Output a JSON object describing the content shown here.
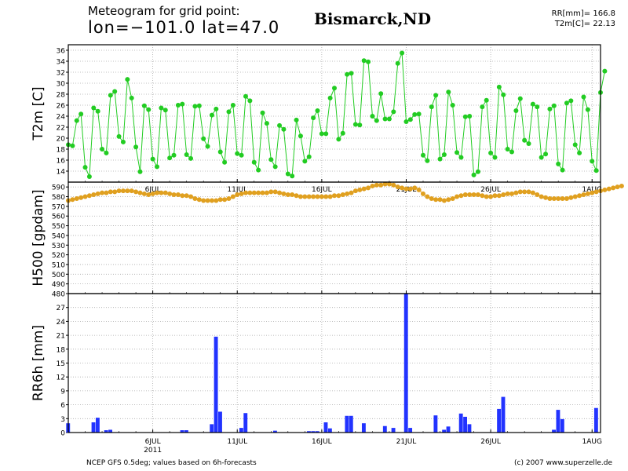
{
  "header": {
    "title_line1": "Meteogram for grid point:",
    "title_line2": "lon=−101.0 lat=47.0",
    "location": "Bismarck,ND",
    "rr_total": "RR[mm]= 166.8",
    "t2m_now": "T2m[C]= 22.13"
  },
  "footer": {
    "source": "NCEP GFS 0.5deg; values based on 6h-forecasts",
    "copyright": "(c) 2007 www.superzelle.de"
  },
  "colors": {
    "t2m": "#22cc22",
    "h500": "#e0a020",
    "rr6h": "#2233ff",
    "grid": "#aaaaaa"
  },
  "chart_data": [
    {
      "type": "line",
      "ylabel": "T2m [C]",
      "ylim": [
        12,
        37
      ],
      "yticks": [
        14,
        16,
        18,
        20,
        22,
        24,
        26,
        28,
        30,
        32,
        34,
        36
      ],
      "x_unit": "days since 1 Jul 2011",
      "xticks": [
        "6JUL",
        "11JUL",
        "16JUL",
        "21JUL",
        "26JUL",
        "1AUG"
      ],
      "x_start": 0,
      "x_step": 0.25,
      "values": [
        18.8,
        18.6,
        23.2,
        24.4,
        14.7,
        13.0,
        25.5,
        24.9,
        18.0,
        17.3,
        27.8,
        28.5,
        20.3,
        19.3,
        30.7,
        27.3,
        18.4,
        13.9,
        25.9,
        25.2,
        16.2,
        14.8,
        25.5,
        25.1,
        16.4,
        16.9,
        26.0,
        26.2,
        17.0,
        16.3,
        25.8,
        25.9,
        19.9,
        18.5,
        24.2,
        25.3,
        17.5,
        15.6,
        24.8,
        26.0,
        17.2,
        16.9,
        27.6,
        26.8,
        15.6,
        14.2,
        24.6,
        22.7,
        16.1,
        14.8,
        22.3,
        21.6,
        13.5,
        13.1,
        23.3,
        20.4,
        15.8,
        16.6,
        23.7,
        25.0,
        20.8,
        20.8,
        27.3,
        29.1,
        19.8,
        20.9,
        31.6,
        31.8,
        22.5,
        22.4,
        34.1,
        33.9,
        24.0,
        23.2,
        28.1,
        23.5,
        23.5,
        24.8,
        33.6,
        35.5,
        23.0,
        23.4,
        24.3,
        24.4,
        16.9,
        15.9,
        25.7,
        27.8,
        16.2,
        17.0,
        28.4,
        26.0,
        17.4,
        16.5,
        23.9,
        24.0,
        13.3,
        13.9,
        25.7,
        26.9,
        17.3,
        16.5,
        29.3,
        27.9,
        18.0,
        17.5,
        25.0,
        27.2,
        19.6,
        19.0,
        26.2,
        25.7,
        16.5,
        17.1,
        25.3,
        25.9,
        15.3,
        14.2,
        26.4,
        26.8,
        18.8,
        17.3,
        27.5,
        25.2,
        15.8,
        14.1,
        28.3,
        32.2
      ]
    },
    {
      "type": "line",
      "ylabel": "H500 [gpdam]",
      "ylim": [
        480,
        595
      ],
      "yticks": [
        480,
        490,
        500,
        510,
        520,
        530,
        540,
        550,
        560,
        570,
        580,
        590
      ],
      "x_unit": "days since 1 Jul 2011",
      "values": [
        576,
        577,
        578,
        579,
        580,
        581,
        582,
        583,
        584,
        584,
        585,
        585,
        586,
        586,
        586,
        586,
        585,
        584,
        583,
        582,
        583,
        584,
        584,
        584,
        583,
        582,
        582,
        581,
        581,
        580,
        578,
        577,
        576,
        576,
        576,
        576,
        577,
        577,
        578,
        580,
        582,
        583,
        584,
        584,
        584,
        584,
        584,
        584,
        585,
        585,
        584,
        583,
        582,
        582,
        581,
        580,
        580,
        580,
        580,
        580,
        580,
        580,
        580,
        581,
        581,
        582,
        583,
        584,
        586,
        587,
        588,
        589,
        591,
        592,
        592,
        593,
        593,
        592,
        590,
        589,
        588,
        588,
        589,
        587,
        583,
        580,
        578,
        577,
        577,
        576,
        577,
        578,
        580,
        581,
        582,
        582,
        582,
        582,
        581,
        580,
        580,
        581,
        581,
        582,
        583,
        583,
        584,
        585,
        585,
        585,
        584,
        582,
        580,
        579,
        578,
        578,
        578,
        578,
        578,
        579,
        580,
        581,
        582,
        583,
        584,
        585,
        586,
        587,
        588,
        589,
        590,
        591
      ]
    },
    {
      "type": "bar",
      "ylabel": "RR6h [mm]",
      "xlabel": "2011",
      "ylim": [
        0,
        30
      ],
      "yticks": [
        0,
        3,
        6,
        9,
        12,
        15,
        18,
        21,
        24,
        27
      ],
      "x_unit": "days since 1 Jul 2011",
      "bars": [
        {
          "x": 0.0,
          "v": 2.0
        },
        {
          "x": 1.5,
          "v": 2.2
        },
        {
          "x": 1.75,
          "v": 3.2
        },
        {
          "x": 2.25,
          "v": 0.5
        },
        {
          "x": 2.5,
          "v": 0.6
        },
        {
          "x": 6.75,
          "v": 0.5
        },
        {
          "x": 7.0,
          "v": 0.5
        },
        {
          "x": 8.5,
          "v": 1.8
        },
        {
          "x": 8.75,
          "v": 20.7
        },
        {
          "x": 9.0,
          "v": 4.5
        },
        {
          "x": 10.25,
          "v": 1.0
        },
        {
          "x": 10.5,
          "v": 4.2
        },
        {
          "x": 12.25,
          "v": 0.4
        },
        {
          "x": 14.25,
          "v": 0.3
        },
        {
          "x": 14.5,
          "v": 0.3
        },
        {
          "x": 14.75,
          "v": 0.3
        },
        {
          "x": 15.25,
          "v": 2.2
        },
        {
          "x": 15.5,
          "v": 0.9
        },
        {
          "x": 16.5,
          "v": 3.6
        },
        {
          "x": 16.75,
          "v": 3.6
        },
        {
          "x": 17.5,
          "v": 2.0
        },
        {
          "x": 18.75,
          "v": 1.4
        },
        {
          "x": 19.25,
          "v": 1.0
        },
        {
          "x": 20.0,
          "v": 30.0
        },
        {
          "x": 20.25,
          "v": 1.0
        },
        {
          "x": 21.75,
          "v": 3.7
        },
        {
          "x": 22.25,
          "v": 0.6
        },
        {
          "x": 22.5,
          "v": 1.3
        },
        {
          "x": 23.25,
          "v": 4.1
        },
        {
          "x": 23.5,
          "v": 3.4
        },
        {
          "x": 23.75,
          "v": 1.8
        },
        {
          "x": 25.5,
          "v": 5.1
        },
        {
          "x": 25.75,
          "v": 7.7
        },
        {
          "x": 28.75,
          "v": 0.6
        },
        {
          "x": 29.0,
          "v": 4.9
        },
        {
          "x": 29.25,
          "v": 2.9
        },
        {
          "x": 31.25,
          "v": 5.3
        }
      ]
    }
  ]
}
